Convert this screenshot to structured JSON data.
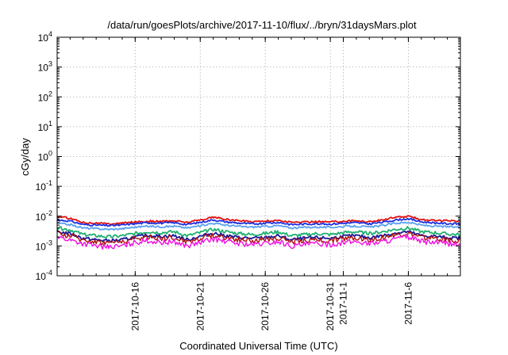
{
  "chart_data": {
    "type": "line",
    "title": "/data/run/goesPlots/archive/2017-11-10/flux/../bryn/31daysMars.plot",
    "xlabel": "Coordinated Universal Time (UTC)",
    "ylabel": "cGy/day",
    "yscale": "log",
    "ylim": [
      0.0001,
      10000
    ],
    "xlim": [
      "2017-10-10",
      "2017-11-10"
    ],
    "grid": true,
    "legend": "none",
    "x_ticks": [
      {
        "date": "2017-10-16",
        "label": "2017-10-16"
      },
      {
        "date": "2017-10-21",
        "label": "2017-10-21"
      },
      {
        "date": "2017-10-26",
        "label": "2017-10-26"
      },
      {
        "date": "2017-10-31",
        "label": "2017-10-31"
      },
      {
        "date": "2017-11-01",
        "label": "2017-11-1"
      },
      {
        "date": "2017-11-06",
        "label": "2017-11-6"
      }
    ],
    "y_ticks": [
      {
        "value": 0.0001,
        "base": "10",
        "exp": "-4"
      },
      {
        "value": 0.001,
        "base": "10",
        "exp": "-3"
      },
      {
        "value": 0.01,
        "base": "10",
        "exp": "-2"
      },
      {
        "value": 0.1,
        "base": "10",
        "exp": "-1"
      },
      {
        "value": 1,
        "base": "10",
        "exp": "0"
      },
      {
        "value": 10,
        "base": "10",
        "exp": "1"
      },
      {
        "value": 100,
        "base": "10",
        "exp": "2"
      },
      {
        "value": 1000,
        "base": "10",
        "exp": "3"
      },
      {
        "value": 10000,
        "base": "10",
        "exp": "4"
      }
    ],
    "x": [
      "2017-10-10",
      "2017-10-11",
      "2017-10-12",
      "2017-10-13",
      "2017-10-14",
      "2017-10-15",
      "2017-10-16",
      "2017-10-17",
      "2017-10-18",
      "2017-10-19",
      "2017-10-20",
      "2017-10-21",
      "2017-10-22",
      "2017-10-23",
      "2017-10-24",
      "2017-10-25",
      "2017-10-26",
      "2017-10-27",
      "2017-10-28",
      "2017-10-29",
      "2017-10-30",
      "2017-10-31",
      "2017-11-01",
      "2017-11-02",
      "2017-11-03",
      "2017-11-04",
      "2017-11-05",
      "2017-11-06",
      "2017-11-07",
      "2017-11-08",
      "2017-11-09",
      "2017-11-10"
    ],
    "series": [
      {
        "color": "#e01010",
        "values": [
          0.0098,
          0.0085,
          0.0062,
          0.0058,
          0.0055,
          0.0058,
          0.0064,
          0.0068,
          0.0066,
          0.007,
          0.0062,
          0.0075,
          0.0092,
          0.0078,
          0.007,
          0.0066,
          0.0068,
          0.0072,
          0.0062,
          0.0063,
          0.0066,
          0.0064,
          0.0068,
          0.007,
          0.0065,
          0.0075,
          0.009,
          0.0098,
          0.0078,
          0.0072,
          0.007,
          0.0068
        ]
      },
      {
        "color": "#1a2fe0",
        "values": [
          0.0075,
          0.0068,
          0.0052,
          0.005,
          0.0048,
          0.005,
          0.0056,
          0.006,
          0.0058,
          0.006,
          0.0052,
          0.0062,
          0.0075,
          0.0064,
          0.0058,
          0.0055,
          0.0058,
          0.0062,
          0.0052,
          0.0054,
          0.0056,
          0.0054,
          0.0058,
          0.006,
          0.0055,
          0.0062,
          0.0074,
          0.0082,
          0.0064,
          0.006,
          0.0056,
          0.0055
        ]
      },
      {
        "color": "#5aa0f0",
        "values": [
          0.0058,
          0.0052,
          0.004,
          0.0038,
          0.0036,
          0.0038,
          0.0043,
          0.0046,
          0.0044,
          0.0046,
          0.004,
          0.0048,
          0.0058,
          0.005,
          0.0045,
          0.0043,
          0.0045,
          0.0048,
          0.004,
          0.0042,
          0.0043,
          0.0042,
          0.0045,
          0.0046,
          0.0043,
          0.0048,
          0.0058,
          0.0062,
          0.005,
          0.0046,
          0.0044,
          0.0043
        ]
      },
      {
        "color": "#20b070",
        "values": [
          0.004,
          0.0035,
          0.0024,
          0.0022,
          0.002,
          0.0022,
          0.0026,
          0.003,
          0.0028,
          0.003,
          0.0022,
          0.0028,
          0.0036,
          0.003,
          0.0026,
          0.0024,
          0.0026,
          0.003,
          0.0022,
          0.0024,
          0.0026,
          0.0024,
          0.0028,
          0.003,
          0.0026,
          0.003,
          0.0036,
          0.004,
          0.003,
          0.0028,
          0.0025,
          0.0024
        ]
      },
      {
        "color": "#1a1a9a",
        "values": [
          0.003,
          0.0026,
          0.0018,
          0.0016,
          0.0015,
          0.0016,
          0.002,
          0.0023,
          0.0021,
          0.0022,
          0.0016,
          0.0021,
          0.0027,
          0.0022,
          0.0019,
          0.0018,
          0.0019,
          0.0022,
          0.0016,
          0.0018,
          0.0019,
          0.0018,
          0.0021,
          0.0022,
          0.0019,
          0.0022,
          0.0027,
          0.003,
          0.0022,
          0.0021,
          0.0019,
          0.0018
        ]
      },
      {
        "color": "#b01010",
        "values": [
          0.0026,
          0.0022,
          0.0016,
          0.0014,
          0.0013,
          0.0014,
          0.0017,
          0.002,
          0.0018,
          0.0019,
          0.0014,
          0.0018,
          0.0023,
          0.0019,
          0.0016,
          0.0015,
          0.0016,
          0.0019,
          0.0014,
          0.0015,
          0.0016,
          0.0015,
          0.0018,
          0.0019,
          0.0016,
          0.0019,
          0.0023,
          0.0026,
          0.0019,
          0.0018,
          0.0016,
          0.0015
        ]
      },
      {
        "color": "#f010e0",
        "values": [
          0.002,
          0.0016,
          0.0012,
          0.001,
          0.0009,
          0.001,
          0.0013,
          0.0015,
          0.0013,
          0.0014,
          0.001,
          0.0013,
          0.0017,
          0.0014,
          0.0012,
          0.0011,
          0.0012,
          0.0014,
          0.001,
          0.0011,
          0.0012,
          0.0011,
          0.0013,
          0.0014,
          0.0012,
          0.0014,
          0.0017,
          0.002,
          0.0014,
          0.0013,
          0.0012,
          0.0011
        ]
      }
    ]
  }
}
